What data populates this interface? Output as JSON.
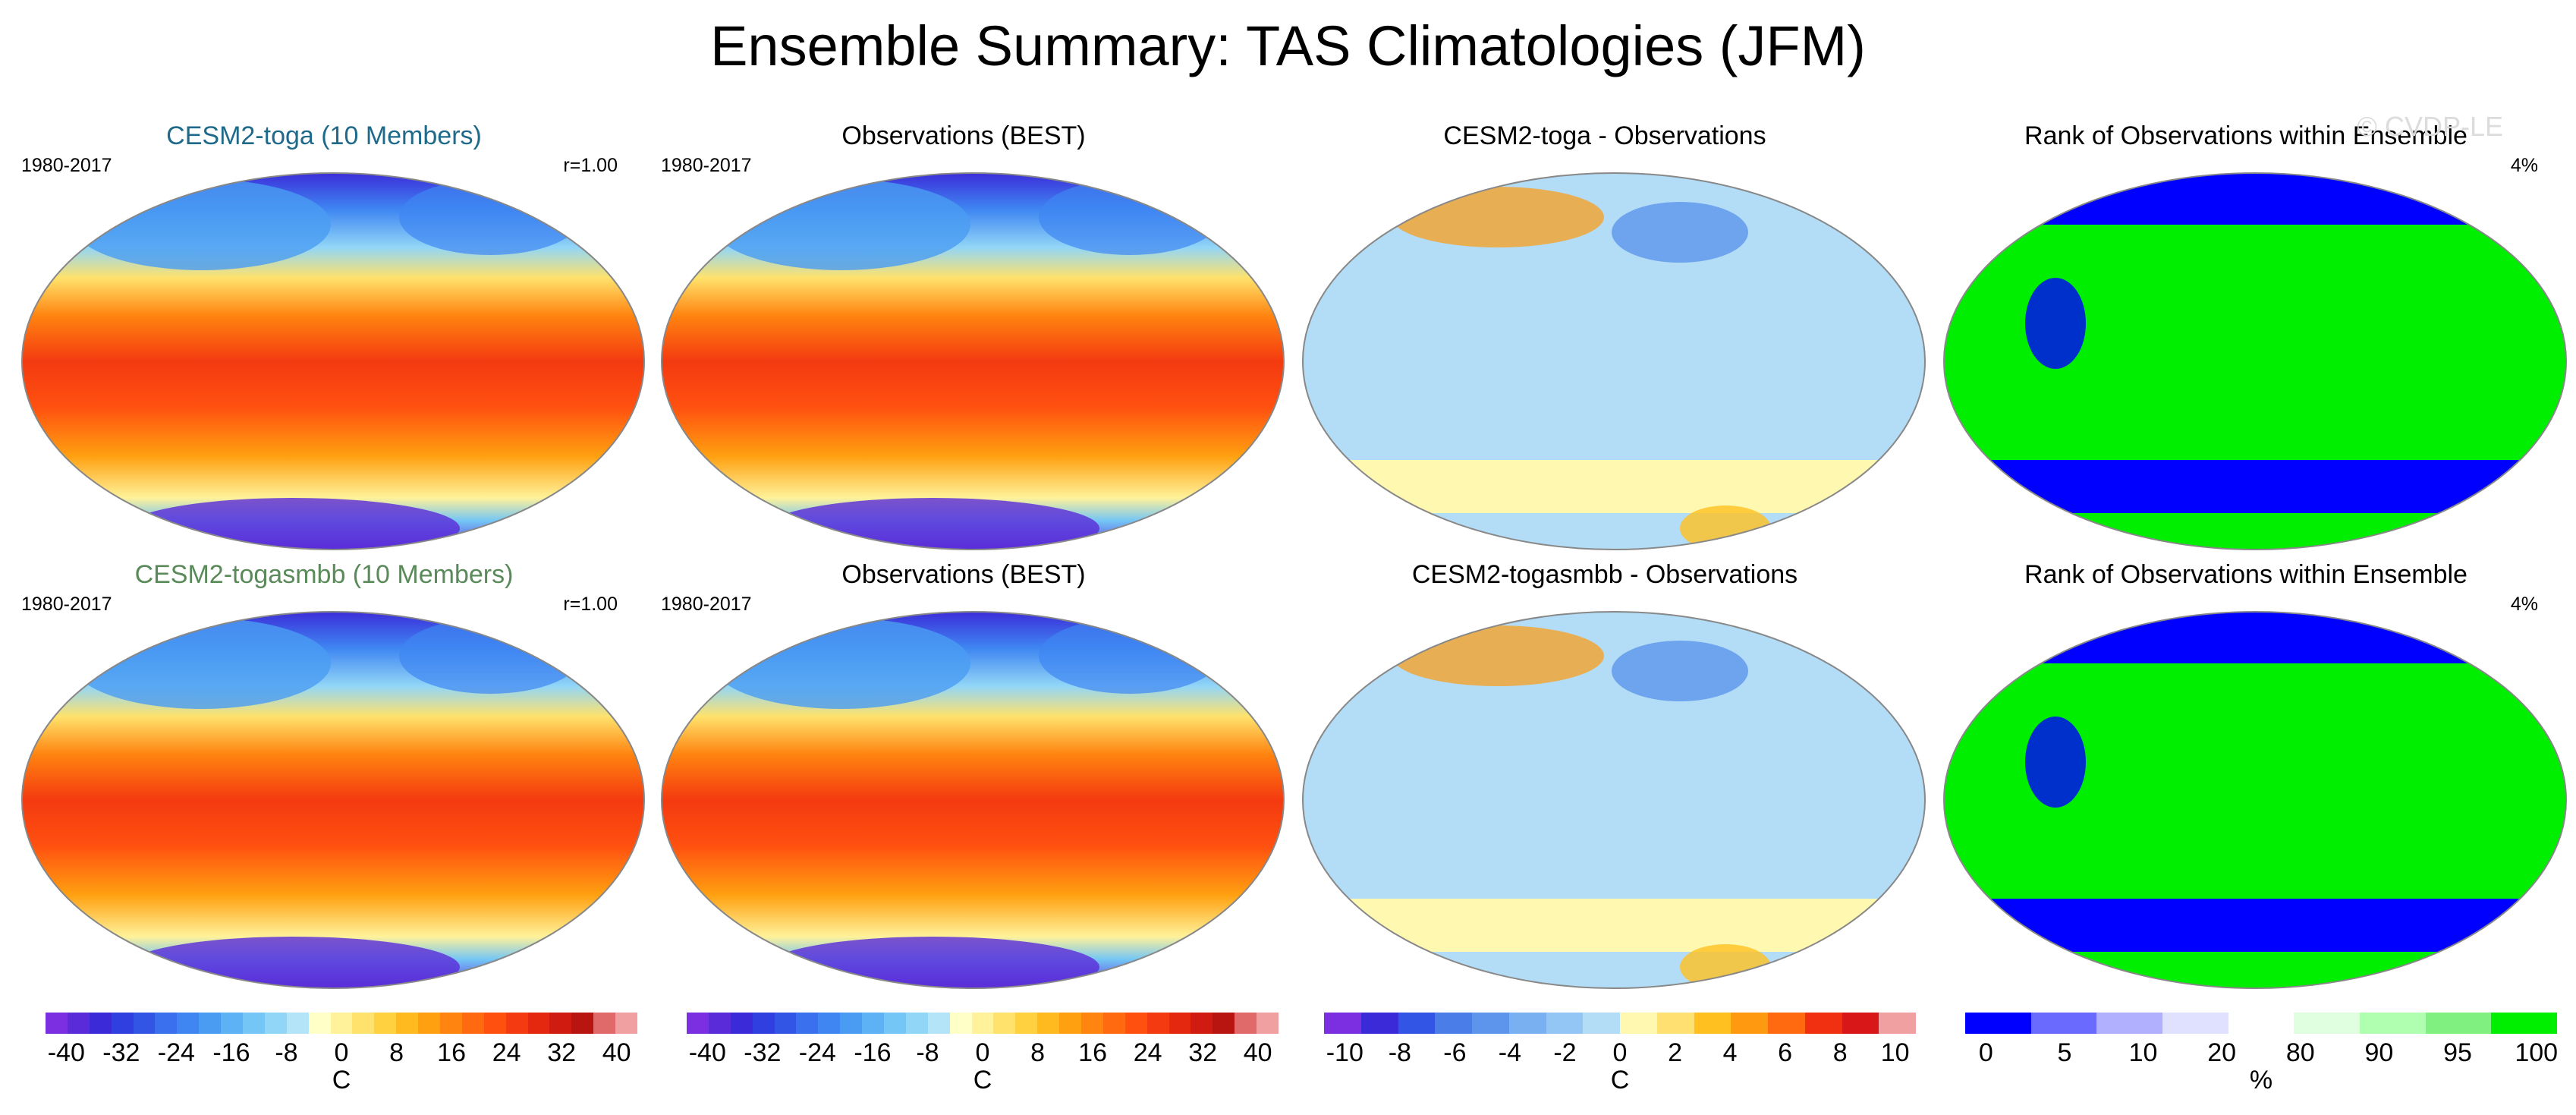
{
  "title": "Ensemble Summary: TAS Climatologies (JFM)",
  "watermark": "© CVDP-LE",
  "rows": [
    {
      "model": {
        "title": "CESM2-toga (10 Members)",
        "title_color": "#1f6a8a",
        "period": "1980-2017",
        "corr": "r=1.00"
      },
      "obs": {
        "title": "Observations (BEST)",
        "period": "1980-2017"
      },
      "diff": {
        "title": "CESM2-toga - Observations"
      },
      "rank": {
        "title": "Rank of Observations within Ensemble",
        "pct": "4%"
      }
    },
    {
      "model": {
        "title": "CESM2-togasmbb (10 Members)",
        "title_color": "#5a8a5a",
        "period": "1980-2017",
        "corr": "r=1.00"
      },
      "obs": {
        "title": "Observations (BEST)",
        "period": "1980-2017"
      },
      "diff": {
        "title": "CESM2-togasmbb - Observations"
      },
      "rank": {
        "title": "Rank of Observations within Ensemble",
        "pct": "4%"
      }
    }
  ],
  "colorbars": [
    {
      "ticks": [
        "-40",
        "-32",
        "-24",
        "-16",
        "-8",
        "0",
        "8",
        "16",
        "24",
        "32",
        "40"
      ],
      "unit": "C",
      "colors": [
        "#7b2fe0",
        "#5a2bd8",
        "#3b2ad8",
        "#2f3fe0",
        "#3355e6",
        "#3a6fee",
        "#3f86f2",
        "#4a9cf2",
        "#5cb2f4",
        "#74c6f6",
        "#92d6f7",
        "#b4e4f8",
        "#ffffc8",
        "#fff29a",
        "#ffe26c",
        "#ffd040",
        "#ffba20",
        "#ffa010",
        "#ff8410",
        "#ff6a10",
        "#ff5010",
        "#f43a10",
        "#e42810",
        "#d01c10",
        "#b81410",
        "#e06a6a",
        "#f0a0a0"
      ]
    },
    {
      "ticks": [
        "-40",
        "-32",
        "-24",
        "-16",
        "-8",
        "0",
        "8",
        "16",
        "24",
        "32",
        "40"
      ],
      "unit": "C",
      "colors": [
        "#7b2fe0",
        "#5a2bd8",
        "#3b2ad8",
        "#2f3fe0",
        "#3355e6",
        "#3a6fee",
        "#3f86f2",
        "#4a9cf2",
        "#5cb2f4",
        "#74c6f6",
        "#92d6f7",
        "#b4e4f8",
        "#ffffc8",
        "#fff29a",
        "#ffe26c",
        "#ffd040",
        "#ffba20",
        "#ffa010",
        "#ff8410",
        "#ff6a10",
        "#ff5010",
        "#f43a10",
        "#e42810",
        "#d01c10",
        "#b81410",
        "#e06a6a",
        "#f0a0a0"
      ]
    },
    {
      "ticks": [
        "-10",
        "-8",
        "-6",
        "-4",
        "-2",
        "0",
        "2",
        "4",
        "6",
        "8",
        "10"
      ],
      "unit": "C",
      "colors": [
        "#7b2fe0",
        "#3b2ad8",
        "#3355e6",
        "#4a7de8",
        "#5d95ec",
        "#78b0f2",
        "#93c6f4",
        "#b3dcf6",
        "#fff8b0",
        "#ffe070",
        "#ffc020",
        "#ff9a10",
        "#ff6a10",
        "#f03010",
        "#d81818",
        "#f0a0a0"
      ]
    },
    {
      "ticks": [
        "0",
        "5",
        "10",
        "20",
        "80",
        "90",
        "95",
        "100"
      ],
      "unit": "%",
      "colors": [
        "#0000ff",
        "#6a6aff",
        "#b0b0ff",
        "#e0e0ff",
        "#ffffff",
        "#e0ffe0",
        "#b0ffb0",
        "#80f080",
        "#00ee00"
      ]
    }
  ]
}
